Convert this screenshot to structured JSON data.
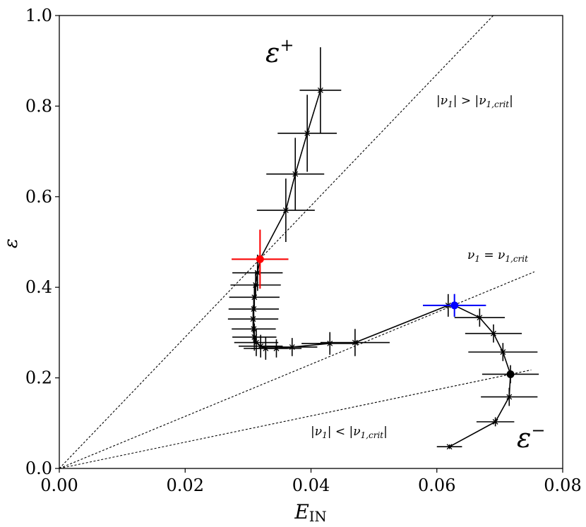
{
  "chart_data": {
    "type": "scatter",
    "xlabel": "E",
    "xlabel_sub": "IN",
    "ylabel": "ε",
    "xlim": [
      0.0,
      0.08
    ],
    "ylim": [
      0.0,
      1.0
    ],
    "x_ticks": [
      0.0,
      0.02,
      0.04,
      0.06,
      0.08
    ],
    "x_tick_labels": [
      "0.00",
      "0.02",
      "0.04",
      "0.06",
      "0.08"
    ],
    "y_ticks": [
      0.0,
      0.2,
      0.4,
      0.6,
      0.8,
      1.0
    ],
    "y_tick_labels": [
      "0.0",
      "0.2",
      "0.4",
      "0.6",
      "0.8",
      "1.0"
    ],
    "reference_lines": [
      {
        "name": "upper",
        "slope": 14.5,
        "x_end": 0.069
      },
      {
        "name": "critical",
        "slope": 5.75,
        "x_end": 0.0755,
        "label_base": "ν",
        "label_sub": "1",
        "label_mid": " = ν",
        "label_sub2": "1,crit"
      },
      {
        "name": "lower",
        "slope": 2.9,
        "x_end": 0.075
      }
    ],
    "series": [
      {
        "name": "ε+ branch",
        "label_base": "ε",
        "label_sup": "+",
        "points": [
          {
            "x": 0.0415,
            "y": 0.835,
            "xerr": 0.0033,
            "yerr": 0.095
          },
          {
            "x": 0.0394,
            "y": 0.74,
            "xerr": 0.0047,
            "yerr": 0.085
          },
          {
            "x": 0.0375,
            "y": 0.65,
            "xerr": 0.0046,
            "yerr": 0.08
          },
          {
            "x": 0.036,
            "y": 0.57,
            "xerr": 0.0046,
            "yerr": 0.07
          },
          {
            "x": 0.0319,
            "y": 0.462,
            "xerr": 0.0045,
            "yerr": 0.065
          },
          {
            "x": 0.0315,
            "y": 0.432,
            "xerr": 0.004,
            "yerr": 0.04
          },
          {
            "x": 0.0312,
            "y": 0.405,
            "xerr": 0.004,
            "yerr": 0.03
          },
          {
            "x": 0.031,
            "y": 0.378,
            "xerr": 0.004,
            "yerr": 0.03
          },
          {
            "x": 0.0309,
            "y": 0.352,
            "xerr": 0.004,
            "yerr": 0.03
          },
          {
            "x": 0.0308,
            "y": 0.33,
            "xerr": 0.004,
            "yerr": 0.03
          },
          {
            "x": 0.0309,
            "y": 0.308,
            "xerr": 0.0035,
            "yerr": 0.03
          },
          {
            "x": 0.031,
            "y": 0.29,
            "xerr": 0.0035,
            "yerr": 0.03
          },
          {
            "x": 0.0313,
            "y": 0.278,
            "xerr": 0.0035,
            "yerr": 0.03
          },
          {
            "x": 0.032,
            "y": 0.27,
            "xerr": 0.0035,
            "yerr": 0.025
          },
          {
            "x": 0.0328,
            "y": 0.265,
            "xerr": 0.0035,
            "yerr": 0.025
          },
          {
            "x": 0.0345,
            "y": 0.265,
            "xerr": 0.004,
            "yerr": 0.02
          },
          {
            "x": 0.037,
            "y": 0.268,
            "xerr": 0.004,
            "yerr": 0.02
          },
          {
            "x": 0.043,
            "y": 0.276,
            "xerr": 0.0045,
            "yerr": 0.025
          },
          {
            "x": 0.047,
            "y": 0.278,
            "xerr": 0.0055,
            "yerr": 0.03
          },
          {
            "x": 0.0618,
            "y": 0.36,
            "xerr": 0.004,
            "yerr": 0.025
          }
        ]
      },
      {
        "name": "ε- branch",
        "label_base": "ε",
        "label_sup": "−",
        "points": [
          {
            "x": 0.0628,
            "y": 0.36,
            "xerr": 0.005,
            "yerr": 0.025
          },
          {
            "x": 0.0668,
            "y": 0.333,
            "xerr": 0.004,
            "yerr": 0.02
          },
          {
            "x": 0.069,
            "y": 0.298,
            "xerr": 0.0045,
            "yerr": 0.02
          },
          {
            "x": 0.0705,
            "y": 0.257,
            "xerr": 0.0055,
            "yerr": 0.02
          },
          {
            "x": 0.0717,
            "y": 0.208,
            "xerr": 0.0045,
            "yerr": 0.02
          },
          {
            "x": 0.0715,
            "y": 0.158,
            "xerr": 0.0045,
            "yerr": 0.02
          },
          {
            "x": 0.0693,
            "y": 0.103,
            "xerr": 0.003,
            "yerr": 0.01
          },
          {
            "x": 0.062,
            "y": 0.048,
            "xerr": 0.002,
            "yerr": 0.005
          }
        ]
      }
    ],
    "highlighted_points": [
      {
        "name": "red",
        "color": "#ff0000",
        "x": 0.0319,
        "y": 0.462,
        "xerr": 0.0045,
        "yerr": 0.065
      },
      {
        "name": "blue",
        "color": "#0000ff",
        "x": 0.0628,
        "y": 0.36,
        "xerr": 0.005,
        "yerr": 0.025
      },
      {
        "name": "black",
        "color": "#000000",
        "x": 0.0717,
        "y": 0.208,
        "xerr": 0,
        "yerr": 0
      }
    ],
    "annotations": {
      "upper_region": {
        "a": "|ν",
        "a_sub": "1",
        "b": "| > |ν",
        "b_sub": "1,crit",
        "c": "|"
      },
      "lower_region": {
        "a": "|ν",
        "a_sub": "1",
        "b": "| < |ν",
        "b_sub": "1,crit",
        "c": "|"
      }
    }
  }
}
